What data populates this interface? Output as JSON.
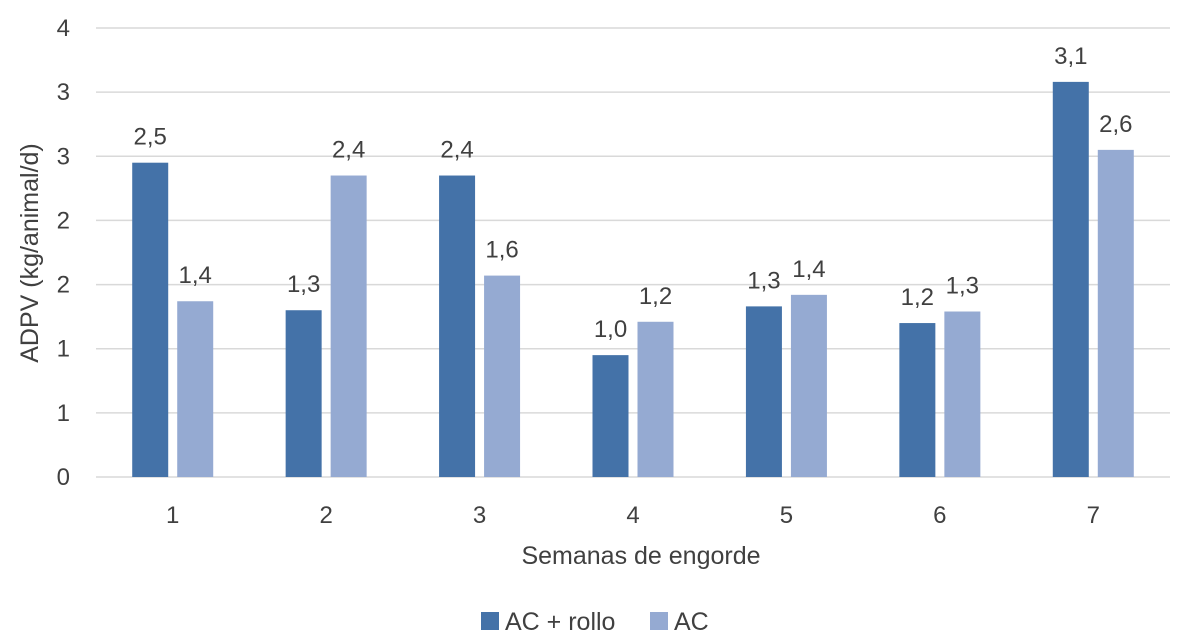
{
  "chart_data": {
    "type": "bar",
    "title": "",
    "xlabel": "Semanas de engorde",
    "ylabel": "ADPV (kg/animal/d)",
    "categories": [
      "1",
      "2",
      "3",
      "4",
      "5",
      "6",
      "7"
    ],
    "ylim": [
      0,
      3.5
    ],
    "ytick_values": [
      0,
      0.5,
      1,
      1.5,
      2,
      2.5,
      3,
      3.5
    ],
    "ytick_labels": [
      "0",
      "1",
      "1",
      "2",
      "2",
      "3",
      "3",
      "4"
    ],
    "grid": true,
    "legend_position": "bottom",
    "series": [
      {
        "name": "AC + rollo",
        "color": "#4472a8",
        "values": [
          2.45,
          1.3,
          2.35,
          0.95,
          1.33,
          1.2,
          3.08
        ],
        "labels": [
          "2,5",
          "1,3",
          "2,4",
          "1,0",
          "1,3",
          "1,2",
          "3,1"
        ]
      },
      {
        "name": "AC",
        "color": "#95aad2",
        "values": [
          1.37,
          2.35,
          1.57,
          1.21,
          1.42,
          1.29,
          2.55
        ],
        "labels": [
          "1,4",
          "2,4",
          "1,6",
          "1,2",
          "1,4",
          "1,3",
          "2,6"
        ]
      }
    ]
  }
}
